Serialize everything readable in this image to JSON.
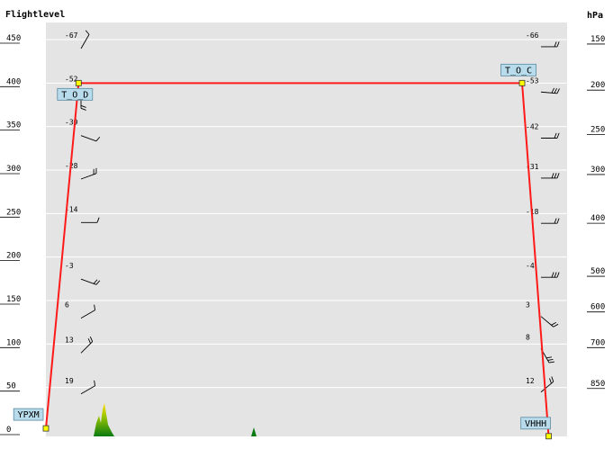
{
  "chart_data": {
    "type": "line",
    "title": "",
    "ylabel_left": "Flightlevel",
    "ylabel_right": "hPa",
    "ylim": [
      0,
      480
    ],
    "xlim": [
      0,
      1
    ],
    "grid": true,
    "left_ticks": [
      0,
      50,
      100,
      150,
      200,
      250,
      300,
      350,
      400,
      450
    ],
    "right_ticks": [
      {
        "label": "150",
        "fl": 449
      },
      {
        "label": "200",
        "fl": 396
      },
      {
        "label": "250",
        "fl": 345
      },
      {
        "label": "300",
        "fl": 299
      },
      {
        "label": "400",
        "fl": 243
      },
      {
        "label": "500",
        "fl": 182
      },
      {
        "label": "600",
        "fl": 141
      },
      {
        "label": "700",
        "fl": 100
      },
      {
        "label": "850",
        "fl": 53
      }
    ],
    "series": [
      {
        "x": [
          0.0,
          0.064,
          0.933,
          0.985
        ],
        "y": [
          3,
          400,
          400,
          -6
        ]
      }
    ],
    "waypoints": [
      {
        "label": "YPXM",
        "x": 0.0,
        "y": 3,
        "anchor": "left"
      },
      {
        "label": "T_O_D",
        "x": 0.064,
        "y": 400,
        "anchor": "below"
      },
      {
        "label": "T_O_C",
        "x": 0.933,
        "y": 400,
        "anchor": "above"
      },
      {
        "label": "VHHH",
        "x": 0.985,
        "y": -6,
        "anchor": "right"
      }
    ],
    "temperatures_left": [
      {
        "fl": 450,
        "value": "-67"
      },
      {
        "fl": 400,
        "value": "-52"
      },
      {
        "fl": 350,
        "value": "-39"
      },
      {
        "fl": 300,
        "value": "-28"
      },
      {
        "fl": 250,
        "value": "-14"
      },
      {
        "fl": 185,
        "value": "-3"
      },
      {
        "fl": 140,
        "value": "6"
      },
      {
        "fl": 100,
        "value": "13"
      },
      {
        "fl": 53,
        "value": "19"
      }
    ],
    "temperatures_right": [
      {
        "fl": 450,
        "value": "-66"
      },
      {
        "fl": 398,
        "value": "-53"
      },
      {
        "fl": 345,
        "value": "-42"
      },
      {
        "fl": 299,
        "value": "-31"
      },
      {
        "fl": 247,
        "value": "-18"
      },
      {
        "fl": 185,
        "value": "-4"
      },
      {
        "fl": 140,
        "value": "3"
      },
      {
        "fl": 103,
        "value": "8"
      },
      {
        "fl": 53,
        "value": "12"
      }
    ],
    "colors": {
      "route": "#ff1a1a",
      "background": "#e4e4e4",
      "grid": "#ffffff",
      "label_box": "#b8dcec",
      "waypoint_marker": "#ffff00",
      "terrain_high": "#ffe000",
      "terrain_low": "#0a7a12"
    }
  }
}
